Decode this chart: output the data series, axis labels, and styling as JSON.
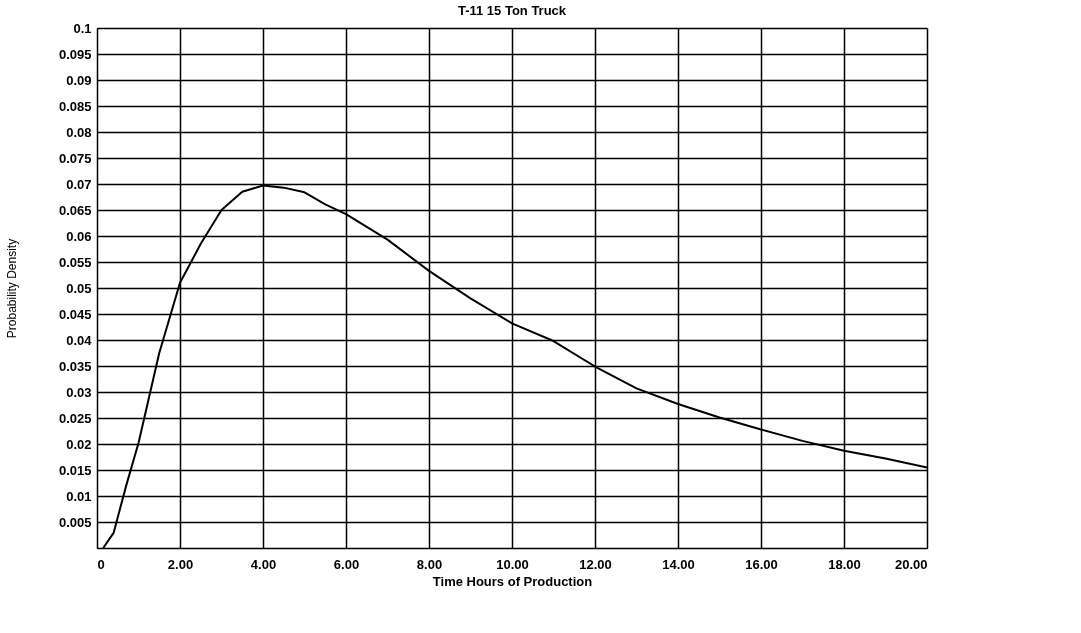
{
  "chart_data": {
    "type": "line",
    "title": "T-11 15 Ton Truck",
    "xlabel": "Time Hours of Production",
    "ylabel": "Probability Density",
    "x": [
      0.15,
      0.4,
      0.7,
      1.0,
      1.5,
      2,
      2.5,
      3,
      3.5,
      4,
      4.5,
      5,
      5.5,
      6,
      7,
      8,
      9,
      10,
      11,
      12,
      13,
      14,
      15,
      16,
      17,
      18,
      19,
      20
    ],
    "series": [
      {
        "color": "#000000",
        "values": [
          0,
          0.0029,
          0.0119,
          0.0202,
          0.0375,
          0.051,
          0.0585,
          0.065,
          0.0685,
          0.0697,
          0.0693,
          0.0684,
          0.0661,
          0.0642,
          0.0593,
          0.0533,
          0.048,
          0.0432,
          0.0398,
          0.0349,
          0.0307,
          0.0277,
          0.0251,
          0.0228,
          0.0206,
          0.0187,
          0.0172,
          0.0155
        ]
      }
    ],
    "xlim": [
      0,
      20
    ],
    "ylim": [
      0,
      0.1
    ],
    "xticks": [
      0,
      {
        "value": 2,
        "label": "2.00"
      },
      {
        "value": 4,
        "label": "4.00"
      },
      {
        "value": 6,
        "label": "6.00"
      },
      {
        "value": 8,
        "label": "8.00"
      },
      {
        "value": 10,
        "label": "10.00"
      },
      {
        "value": 12,
        "label": "12.00"
      },
      {
        "value": 14,
        "label": "14.00"
      },
      {
        "value": 16,
        "label": "16.00"
      },
      {
        "value": 18,
        "label": "18.00"
      },
      {
        "value": 20,
        "label": "20.00"
      }
    ],
    "yticks": [
      {
        "value": 0,
        "label": null
      },
      0.005,
      0.01,
      0.015,
      0.02,
      0.025,
      0.03,
      0.035,
      0.04,
      0.045,
      0.05,
      0.055,
      0.06,
      0.065,
      0.07,
      0.075,
      0.08,
      0.085,
      0.09,
      0.095,
      0.1
    ],
    "grid": true,
    "legend": false,
    "marker": "none",
    "line_style": "solid"
  }
}
